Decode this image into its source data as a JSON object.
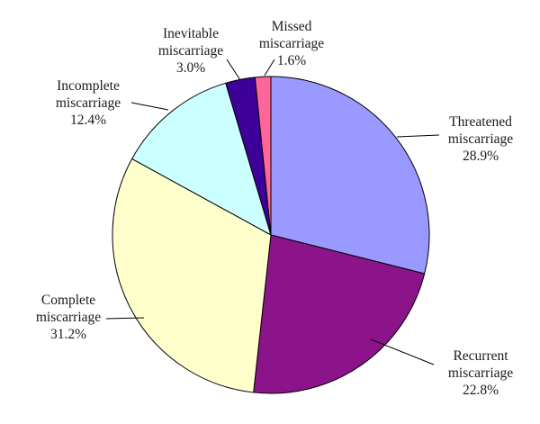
{
  "chart_data": {
    "type": "pie",
    "title": "",
    "start_angle_deg": 0,
    "direction": "clockwise",
    "slices": [
      {
        "lines": [
          "Threatened",
          "miscarriage"
        ],
        "percent_label": "28.9%",
        "value": 28.9,
        "color": "#9999ff"
      },
      {
        "lines": [
          "Recurrent",
          "miscarriage"
        ],
        "percent_label": "22.8%",
        "value": 22.8,
        "color": "#8b148b"
      },
      {
        "lines": [
          "Complete",
          "miscarriage"
        ],
        "percent_label": "31.2%",
        "value": 31.2,
        "color": "#ffffcc"
      },
      {
        "lines": [
          "Incomplete",
          "miscarriage"
        ],
        "percent_label": "12.4%",
        "value": 12.4,
        "color": "#ccffff"
      },
      {
        "lines": [
          "Inevitable",
          "miscarriage"
        ],
        "percent_label": "3.0%",
        "value": 3.0,
        "color": "#3d0099"
      },
      {
        "lines": [
          "Missed",
          "miscarriage"
        ],
        "percent_label": "1.6%",
        "value": 1.6,
        "color": "#ff6699"
      }
    ]
  }
}
